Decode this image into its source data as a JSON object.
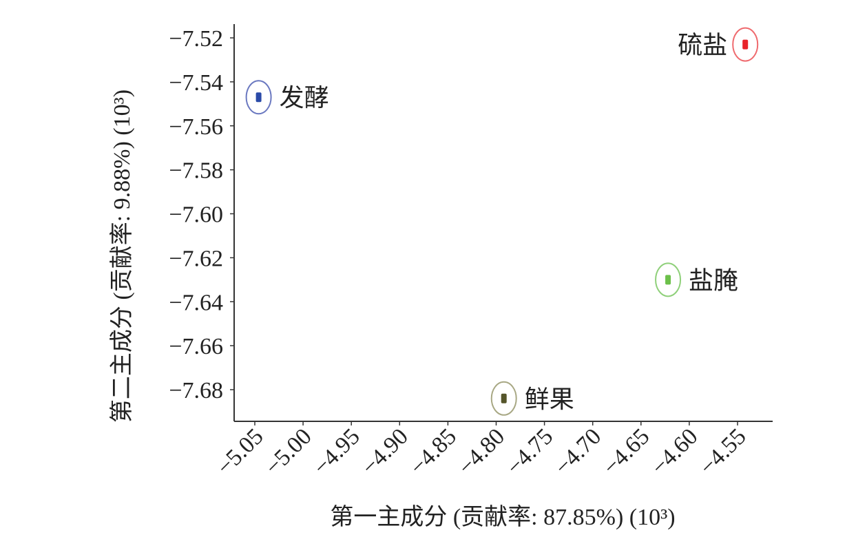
{
  "chart_data": {
    "type": "scatter",
    "title": "",
    "xlabel": "第一主成分 (贡献率: 87.85%) (10³)",
    "ylabel": "第二主成分 (贡献率: 9.88%) (10³)",
    "xlim": [
      -5.06,
      -4.53
    ],
    "ylim": [
      -7.695,
      -7.51
    ],
    "x_ticks": [
      -5.05,
      -5.0,
      -4.95,
      -4.9,
      -4.85,
      -4.8,
      -4.75,
      -4.7,
      -4.65,
      -4.6,
      -4.55
    ],
    "x_tick_labels": [
      "−5.05",
      "−5.00",
      "−4.95",
      "−4.90",
      "−4.85",
      "−4.80",
      "−4.75",
      "−4.70",
      "−4.65",
      "−4.60",
      "−4.55"
    ],
    "y_ticks": [
      -7.52,
      -7.54,
      -7.56,
      -7.58,
      -7.6,
      -7.62,
      -7.64,
      -7.66,
      -7.68
    ],
    "y_tick_labels": [
      "−7.52",
      "−7.54",
      "−7.56",
      "−7.58",
      "−7.60",
      "−7.62",
      "−7.64",
      "−7.66",
      "−7.68"
    ],
    "grid": false,
    "points": [
      {
        "label": "发酵",
        "x": -5.046,
        "y": -7.547,
        "color": "#2a4aa8",
        "ring_color": "#6a78c0",
        "label_side": "right"
      },
      {
        "label": "硫盐",
        "x": -4.542,
        "y": -7.523,
        "color": "#e8242a",
        "ring_color": "#ef6a6e",
        "label_side": "left"
      },
      {
        "label": "盐腌",
        "x": -4.622,
        "y": -7.63,
        "color": "#6cc04a",
        "ring_color": "#8fd07a",
        "label_side": "right"
      },
      {
        "label": "鲜果",
        "x": -4.792,
        "y": -7.684,
        "color": "#55552a",
        "ring_color": "#a8a884",
        "label_side": "right"
      }
    ]
  }
}
